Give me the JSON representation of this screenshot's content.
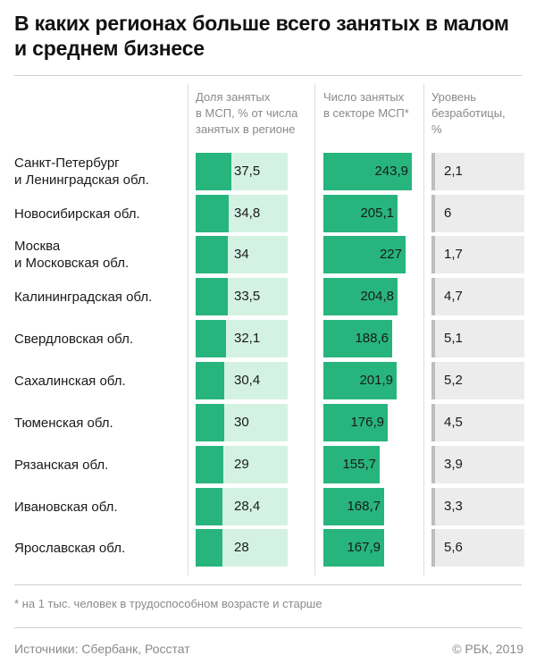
{
  "title": "В каких регионах больше всего занятых в малом и среднем бизнесе",
  "columns": {
    "share": "Доля занятых\nв МСП, % от числа\nзанятых в регионе",
    "count": "Число занятых\nв секторе МСП*",
    "unemployment": "Уровень\nбезработицы,\n%"
  },
  "footnote": "* на 1 тыс. человек в трудоспособном возрасте и старше",
  "source": "Источники: Сбербанк, Росстат",
  "copyright": "© РБК, 2019",
  "colors": {
    "accent": "#27b57d",
    "accent_light": "#d4f2e4",
    "gray_bar": "#bdbdbd",
    "gray_bg": "#ececec"
  },
  "chart_data": {
    "type": "table",
    "columns": [
      "Доля занятых в МСП, % от числа занятых в регионе",
      "Число занятых в секторе МСП*",
      "Уровень безработицы, %"
    ],
    "rows": [
      {
        "region": "Санкт-Петербург\nи Ленинградская обл.",
        "share": "37,5",
        "count": "243,9",
        "unemployment": "2,1"
      },
      {
        "region": "Новосибирская обл.",
        "share": "34,8",
        "count": "205,1",
        "unemployment": "6"
      },
      {
        "region": "Москва\nи Московская обл.",
        "share": "34",
        "count": "227",
        "unemployment": "1,7"
      },
      {
        "region": "Калининградская обл.",
        "share": "33,5",
        "count": "204,8",
        "unemployment": "4,7"
      },
      {
        "region": "Свердловская обл.",
        "share": "32,1",
        "count": "188,6",
        "unemployment": "5,1"
      },
      {
        "region": "Сахалинская обл.",
        "share": "30,4",
        "count": "201,9",
        "unemployment": "5,2"
      },
      {
        "region": "Тюменская обл.",
        "share": "30",
        "count": "176,9",
        "unemployment": "4,5"
      },
      {
        "region": "Рязанская обл.",
        "share": "29",
        "count": "155,7",
        "unemployment": "3,9"
      },
      {
        "region": "Ивановская обл.",
        "share": "28,4",
        "count": "168,7",
        "unemployment": "3,3"
      },
      {
        "region": "Ярославская обл.",
        "share": "28",
        "count": "167,9",
        "unemployment": "5,6"
      }
    ]
  }
}
